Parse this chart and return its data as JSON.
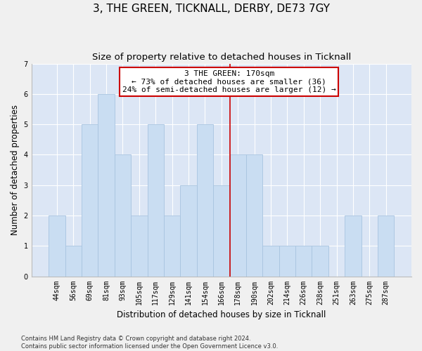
{
  "title": "3, THE GREEN, TICKNALL, DERBY, DE73 7GY",
  "subtitle": "Size of property relative to detached houses in Ticknall",
  "ylabel": "Number of detached properties",
  "xlabel": "Distribution of detached houses by size in Ticknall",
  "categories": [
    "44sqm",
    "56sqm",
    "69sqm",
    "81sqm",
    "93sqm",
    "105sqm",
    "117sqm",
    "129sqm",
    "141sqm",
    "154sqm",
    "166sqm",
    "178sqm",
    "190sqm",
    "202sqm",
    "214sqm",
    "226sqm",
    "238sqm",
    "251sqm",
    "263sqm",
    "275sqm",
    "287sqm"
  ],
  "values": [
    2,
    1,
    5,
    6,
    4,
    2,
    5,
    2,
    3,
    5,
    3,
    4,
    4,
    1,
    1,
    1,
    1,
    0,
    2,
    0,
    2
  ],
  "bar_color": "#c9ddf2",
  "bar_edgecolor": "#a8c4e0",
  "vline_color": "#cc0000",
  "vline_x_index": 10.5,
  "annotation_text": "3 THE GREEN: 170sqm\n← 73% of detached houses are smaller (36)\n24% of semi-detached houses are larger (12) →",
  "annotation_box_facecolor": "#ffffff",
  "annotation_box_edgecolor": "#cc0000",
  "ylim": [
    0,
    7
  ],
  "yticks": [
    0,
    1,
    2,
    3,
    4,
    5,
    6,
    7
  ],
  "bg_color": "#dce6f5",
  "fig_bg_color": "#f0f0f0",
  "grid_color": "#ffffff",
  "footer_line1": "Contains HM Land Registry data © Crown copyright and database right 2024.",
  "footer_line2": "Contains public sector information licensed under the Open Government Licence v3.0.",
  "title_fontsize": 11,
  "subtitle_fontsize": 9.5,
  "ylabel_fontsize": 8.5,
  "xlabel_fontsize": 8.5,
  "tick_fontsize": 7,
  "annot_fontsize": 8,
  "footer_fontsize": 6
}
